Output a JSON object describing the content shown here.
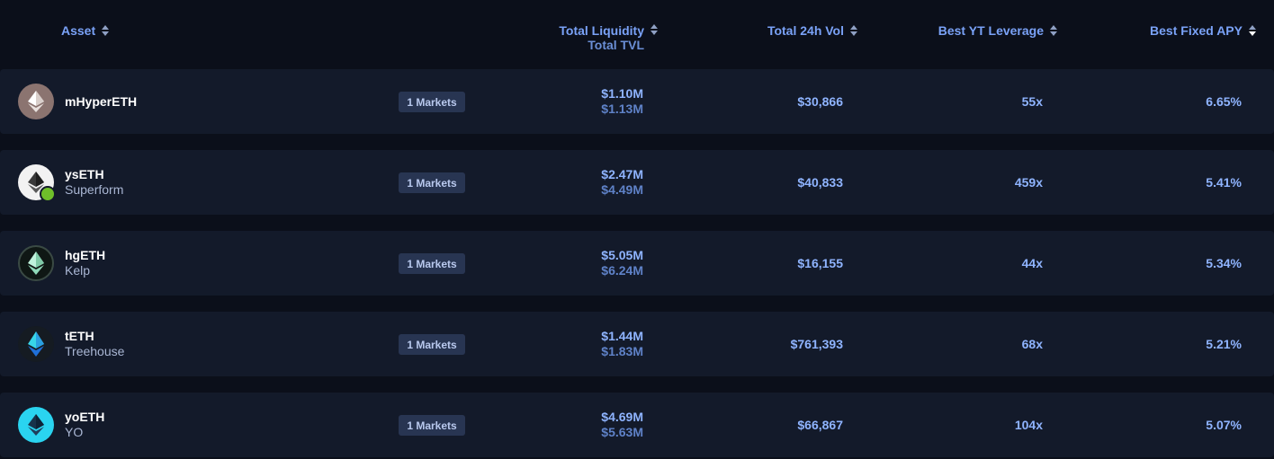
{
  "header": {
    "asset": "Asset",
    "total_liquidity": "Total Liquidity",
    "total_tvl": "Total TVL",
    "total_24h_vol": "Total 24h Vol",
    "best_yt_leverage": "Best YT Leverage",
    "best_fixed_apy": "Best Fixed APY",
    "sort_icon": "sort-icon",
    "active_sort": "Best Fixed APY (descending)"
  },
  "rows": [
    {
      "name": "mHyperETH",
      "subtitle": "",
      "markets": "1 Markets",
      "liquidity": "$1.10M",
      "tvl": "$1.13M",
      "vol": "$30,866",
      "leverage": "55x",
      "apy": "6.65%",
      "icon": "eth-diamond-icon",
      "icon_bg": "#8b7470"
    },
    {
      "name": "ysETH",
      "subtitle": "Superform",
      "markets": "1 Markets",
      "liquidity": "$2.47M",
      "tvl": "$4.49M",
      "vol": "$40,833",
      "leverage": "459x",
      "apy": "5.41%",
      "icon": "eth-diamond-icon",
      "icon_bg": "#f2f2f2",
      "badge": "superform-badge-icon"
    },
    {
      "name": "hgETH",
      "subtitle": "Kelp",
      "markets": "1 Markets",
      "liquidity": "$5.05M",
      "tvl": "$6.24M",
      "vol": "$16,155",
      "leverage": "44x",
      "apy": "5.34%",
      "icon": "eth-diamond-icon",
      "icon_bg": "#0f1714"
    },
    {
      "name": "tETH",
      "subtitle": "Treehouse",
      "markets": "1 Markets",
      "liquidity": "$1.44M",
      "tvl": "$1.83M",
      "vol": "$761,393",
      "leverage": "68x",
      "apy": "5.21%",
      "icon": "eth-diamond-icon",
      "icon_bg": "#151b22"
    },
    {
      "name": "yoETH",
      "subtitle": "YO",
      "markets": "1 Markets",
      "liquidity": "$4.69M",
      "tvl": "$5.63M",
      "vol": "$66,867",
      "leverage": "104x",
      "apy": "5.07%",
      "icon": "eth-diamond-icon",
      "icon_bg": "#2ad4f0"
    }
  ],
  "colors": {
    "background": "#0b0f1a",
    "row_background": "#131a2a",
    "accent": "#8fb4ff",
    "header_text": "#7aa2f7",
    "markets_badge": "#283552"
  }
}
